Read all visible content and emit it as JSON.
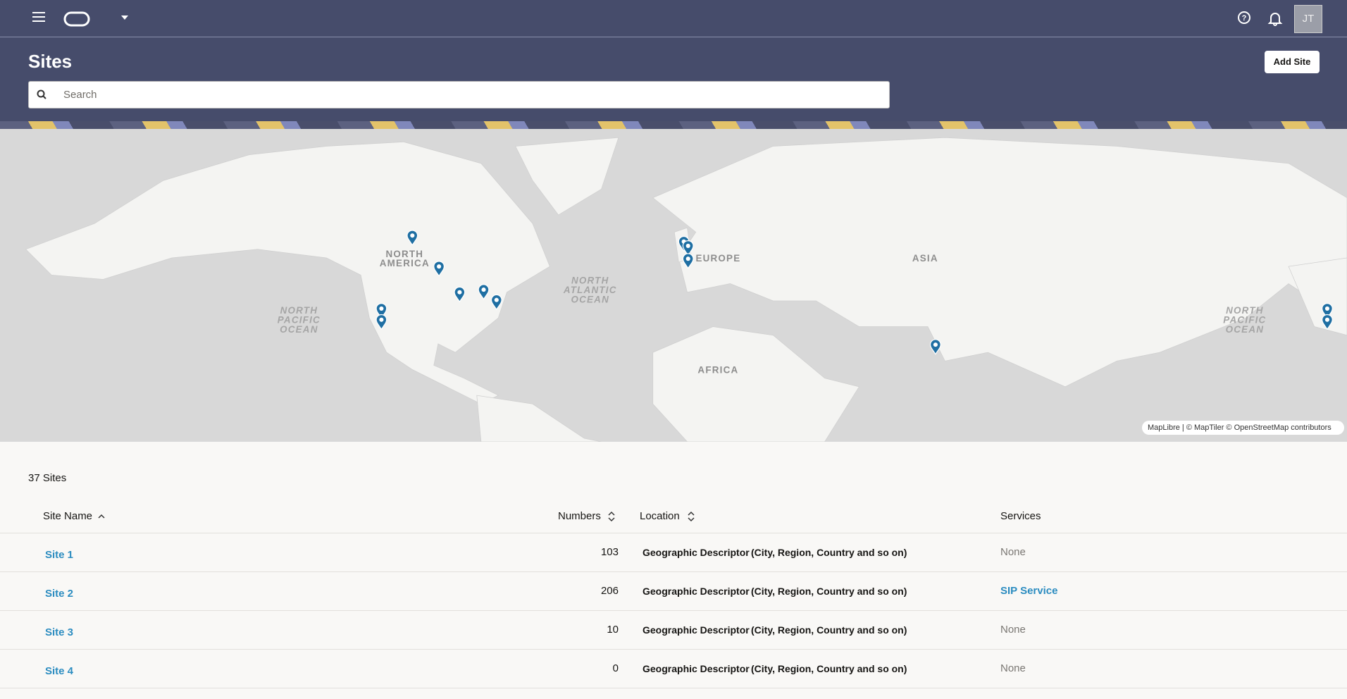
{
  "header": {
    "avatar": "JT"
  },
  "page": {
    "title": "Sites",
    "add_button": "Add Site",
    "search_placeholder": "Search"
  },
  "map": {
    "labels": {
      "north_america": [
        "NORTH",
        "AMERICA"
      ],
      "europe": "EUROPE",
      "asia": "ASIA",
      "africa": "AFRICA",
      "north_atlantic": [
        "NORTH",
        "ATLANTIC",
        "OCEAN"
      ],
      "north_pacific_west": [
        "NORTH",
        "PACIFIC",
        "OCEAN"
      ],
      "north_pacific_east": [
        "NORTH",
        "PACIFIC",
        "OCEAN"
      ]
    },
    "attribution": "MapLibre | © MapTiler © OpenStreetMap contributors"
  },
  "table": {
    "count": "37 Sites",
    "columns": [
      "Site Name",
      "Numbers",
      "Location",
      "Services"
    ],
    "rows": [
      [
        "Site 1",
        "103",
        "Geographic Descriptor",
        "(City, Region, Country and so on)",
        "None"
      ],
      [
        "Site 2",
        "206",
        "Geographic Descriptor",
        "(City, Region, Country and so on)",
        "SIP Service"
      ],
      [
        "Site 3",
        "10",
        "Geographic Descriptor",
        "(City, Region, Country and so on)",
        "None"
      ],
      [
        "Site 4",
        "0",
        "Geographic Descriptor",
        "(City, Region, Country and so on)",
        "None"
      ]
    ]
  }
}
